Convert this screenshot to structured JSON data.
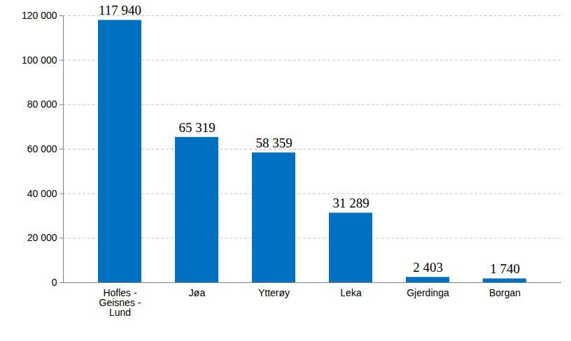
{
  "chart_data": {
    "type": "bar",
    "categories": [
      "Hofles - Geisnes - Lund",
      "Jøa",
      "Ytterøy",
      "Leka",
      "Gjerdinga",
      "Borgan"
    ],
    "values": [
      117940,
      65319,
      58359,
      31289,
      2403,
      1740
    ],
    "value_labels": [
      "117 940",
      "65 319",
      "58 359",
      "31 289",
      "2 403",
      "1 740"
    ],
    "color": "#0070c0",
    "ylim": [
      0,
      120000
    ],
    "yticks": [
      {
        "value": 0,
        "label": "0"
      },
      {
        "value": 20000,
        "label": "20 000"
      },
      {
        "value": 40000,
        "label": "40 000"
      },
      {
        "value": 60000,
        "label": "60 000"
      },
      {
        "value": 80000,
        "label": "80 000"
      },
      {
        "value": 100000,
        "label": "100 000"
      },
      {
        "value": 120000,
        "label": "120 000"
      }
    ],
    "grid": true,
    "data_labels": true
  }
}
